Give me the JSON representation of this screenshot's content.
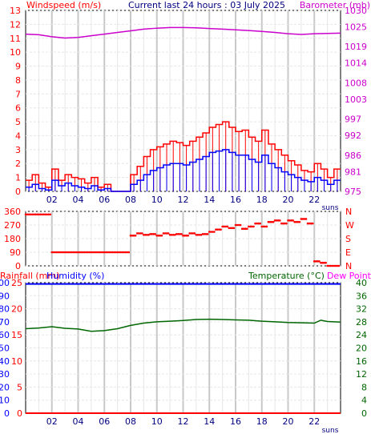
{
  "panel_top": {
    "left_title": "Windspeed (m/s)",
    "center_title": "Current last 24 hours : 03 July 2025",
    "right_title": "Barometer (mb)",
    "sun_label": "suns"
  },
  "panel_mid": {
    "direction_labels": [
      "N",
      "W",
      "S",
      "E",
      "N"
    ]
  },
  "panel_bottom": {
    "rain_title": "Rainfall (mm)",
    "humidity_title": "Humidity (%)",
    "temp_title": "Temperature (°C)",
    "dew_title": "Dew Point",
    "sun_label": "suns"
  },
  "hour_labels": [
    "02",
    "04",
    "06",
    "08",
    "10",
    "12",
    "14",
    "16",
    "18",
    "20",
    "22"
  ],
  "colors": {
    "windspeed": "#ff0000",
    "wind_avg": "#0000ff",
    "barometer": "#cc00cc",
    "direction": "#ff0000",
    "rain": "#ff0000",
    "humidity": "#0000ff",
    "temperature": "#006600",
    "dewpoint": "#ff00ff",
    "grid_light": "#e6e6e6",
    "grid_dark": "#c8c8c8"
  },
  "chart_data": [
    {
      "type": "line",
      "name": "windspeed_barometer",
      "x_range_hours": [
        0,
        24
      ],
      "x_ticks": [
        "02",
        "04",
        "06",
        "08",
        "10",
        "12",
        "14",
        "16",
        "18",
        "20",
        "22"
      ],
      "y_left": {
        "label": "Windspeed (m/s)",
        "ticks": [
          0,
          1,
          2,
          3,
          4,
          5,
          6,
          7,
          8,
          9,
          10,
          11,
          12,
          13
        ],
        "range": [
          0,
          13
        ]
      },
      "y_right": {
        "label": "Barometer (mb)",
        "ticks": [
          975,
          981,
          986,
          992,
          997,
          1003,
          1008,
          1014,
          1019,
          1025,
          1030
        ],
        "range": [
          975,
          1030
        ]
      },
      "series": [
        {
          "x": [
            0,
            0.5,
            1,
            1.5,
            2,
            2.5,
            3,
            3.5,
            4,
            4.5,
            5,
            5.5,
            6,
            6.5,
            7,
            7.5,
            8,
            8.5,
            9,
            9.5,
            10,
            10.5,
            11,
            11.5,
            12,
            12.5,
            13,
            13.5,
            14,
            14.5,
            15,
            15.5,
            16,
            16.5,
            17,
            17.5,
            18,
            18.5,
            19,
            19.5,
            20,
            20.5,
            21,
            21.5,
            22,
            22.5,
            23,
            23.5
          ],
          "values": [
            0.8,
            1.2,
            0.6,
            0.3,
            1.6,
            0.8,
            1.2,
            1.0,
            0.9,
            0.6,
            1.0,
            0.3,
            0.5,
            0.0,
            0.0,
            0.0,
            1.2,
            1.8,
            2.5,
            3.0,
            3.2,
            3.4,
            3.6,
            3.5,
            3.3,
            3.6,
            3.9,
            4.2,
            4.6,
            4.8,
            5.0,
            4.6,
            4.3,
            4.4,
            3.9,
            3.6,
            4.4,
            3.4,
            3.0,
            2.6,
            2.2,
            1.9,
            1.5,
            1.4,
            2.0,
            1.6,
            1.0,
            1.6
          ]
        },
        {
          "x": [
            0,
            0.5,
            1,
            1.5,
            2,
            2.5,
            3,
            3.5,
            4,
            4.5,
            5,
            5.5,
            6,
            6.5,
            7,
            7.5,
            8,
            8.5,
            9,
            9.5,
            10,
            10.5,
            11,
            11.5,
            12,
            12.5,
            13,
            13.5,
            14,
            14.5,
            15,
            15.5,
            16,
            16.5,
            17,
            17.5,
            18,
            18.5,
            19,
            19.5,
            20,
            20.5,
            21,
            21.5,
            22,
            22.5,
            23,
            23.5
          ],
          "values": [
            0.3,
            0.5,
            0.2,
            0.1,
            0.8,
            0.4,
            0.6,
            0.4,
            0.3,
            0.2,
            0.4,
            0.1,
            0.2,
            0.0,
            0.0,
            0.0,
            0.5,
            0.8,
            1.2,
            1.5,
            1.7,
            1.9,
            2.0,
            2.0,
            1.9,
            2.1,
            2.3,
            2.5,
            2.8,
            2.9,
            3.0,
            2.8,
            2.6,
            2.6,
            2.3,
            2.1,
            2.6,
            2.0,
            1.7,
            1.4,
            1.2,
            1.0,
            0.8,
            0.7,
            1.0,
            0.8,
            0.5,
            0.8
          ]
        },
        {
          "x": [
            0,
            1,
            2,
            3,
            4,
            5,
            6,
            7,
            8,
            9,
            10,
            11,
            12,
            13,
            14,
            15,
            16,
            17,
            18,
            19,
            20,
            21,
            22,
            23,
            24
          ],
          "values": [
            1022.8,
            1022.6,
            1022.0,
            1021.6,
            1021.8,
            1022.3,
            1022.8,
            1023.3,
            1023.8,
            1024.3,
            1024.6,
            1024.8,
            1024.8,
            1024.7,
            1024.5,
            1024.3,
            1024.1,
            1023.9,
            1023.6,
            1023.3,
            1022.9,
            1022.7,
            1022.9,
            1023.0,
            1023.1
          ]
        }
      ]
    },
    {
      "type": "scatter",
      "name": "wind_direction",
      "x_range_hours": [
        0,
        24
      ],
      "y_left": {
        "ticks": [
          0,
          90,
          180,
          270,
          360
        ],
        "range": [
          0,
          360
        ]
      },
      "y_right_labels": [
        "N",
        "W",
        "S",
        "E",
        "N"
      ],
      "series": [
        {
          "x": [
            0,
            0.5,
            1,
            1.5,
            2,
            2.5,
            3,
            3.5,
            4,
            4.5,
            5,
            5.5,
            6,
            6.5,
            7,
            7.5,
            8,
            8.5,
            9,
            9.5,
            10,
            10.5,
            11,
            11.5,
            12,
            12.5,
            13,
            13.5,
            14,
            14.5,
            15,
            15.5,
            16,
            16.5,
            17,
            17.5,
            18,
            18.5,
            19,
            19.5,
            20,
            20.5,
            21,
            21.5,
            22,
            22.5,
            23,
            23.5
          ],
          "values": [
            340,
            340,
            340,
            340,
            90,
            90,
            90,
            90,
            90,
            90,
            90,
            90,
            90,
            90,
            90,
            90,
            200,
            215,
            205,
            210,
            200,
            215,
            205,
            210,
            200,
            215,
            205,
            210,
            225,
            240,
            260,
            250,
            270,
            245,
            260,
            280,
            260,
            290,
            300,
            280,
            300,
            290,
            310,
            280,
            30,
            20,
            0,
            0
          ]
        }
      ]
    },
    {
      "type": "line",
      "name": "rain_humidity_temperature",
      "x_range_hours": [
        0,
        24
      ],
      "x_ticks": [
        "02",
        "04",
        "06",
        "08",
        "10",
        "12",
        "14",
        "16",
        "18",
        "20",
        "22"
      ],
      "y_left_rain": {
        "label": "Rainfall (mm)",
        "ticks": [
          0,
          5,
          10,
          15,
          20,
          25
        ],
        "range": [
          0,
          25
        ]
      },
      "y_left_humidity": {
        "label": "Humidity (%)",
        "ticks": [
          0,
          10,
          20,
          30,
          40,
          50,
          60,
          70,
          80,
          90,
          100
        ],
        "range": [
          0,
          100
        ]
      },
      "y_right": {
        "label": "Temperature (°C)",
        "ticks": [
          0,
          4,
          8,
          12,
          16,
          20,
          24,
          28,
          32,
          36,
          40
        ],
        "range": [
          0,
          40
        ]
      },
      "series": [
        {
          "x": [
            0,
            24
          ],
          "values": [
            0,
            0
          ]
        },
        {
          "x": [
            0,
            24
          ],
          "values": [
            99,
            99
          ]
        },
        {
          "x": [
            0,
            1,
            2,
            3,
            4,
            5,
            6,
            7,
            8,
            9,
            10,
            11,
            12,
            13,
            14,
            15,
            16,
            17,
            18,
            19,
            20,
            21,
            22,
            22.5,
            23,
            24
          ],
          "values": [
            25.9,
            26.1,
            26.5,
            26.0,
            25.8,
            25.1,
            25.3,
            25.9,
            26.9,
            27.6,
            28.0,
            28.2,
            28.4,
            28.7,
            28.8,
            28.7,
            28.6,
            28.5,
            28.2,
            28.0,
            27.8,
            27.7,
            27.6,
            28.5,
            28.1,
            27.9
          ]
        }
      ]
    }
  ]
}
